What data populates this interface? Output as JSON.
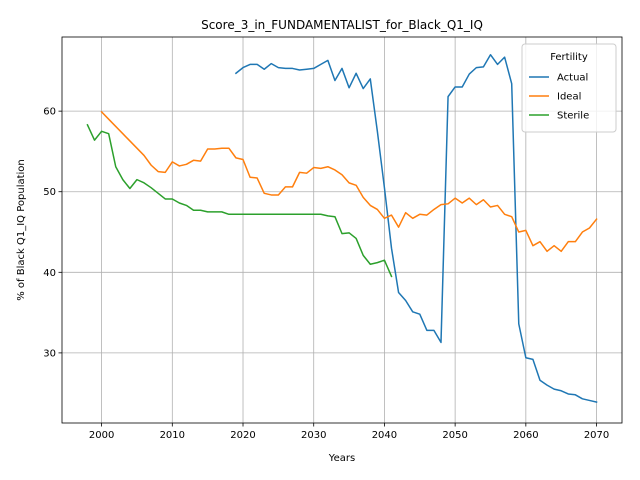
{
  "chart_data": {
    "type": "line",
    "title": "Score_3_in_FUNDAMENTALIST_for_Black_Q1_IQ",
    "xlabel": "Years",
    "ylabel": "% of Black Q1_IQ Population",
    "xlim": [
      1994.4,
      2073.6
    ],
    "ylim": [
      21.3,
      69.2
    ],
    "grid": true,
    "legend": {
      "title": "Fertility",
      "placement": "top-right"
    },
    "x_ticks": [
      2000,
      2010,
      2020,
      2030,
      2040,
      2050,
      2060,
      2070
    ],
    "x_tick_labels": [
      "2000",
      "2010",
      "2020",
      "2030",
      "2040",
      "2050",
      "2060",
      "2070"
    ],
    "y_ticks": [
      30,
      40,
      50,
      60
    ],
    "y_tick_labels": [
      "30",
      "40",
      "50",
      "60"
    ],
    "series": [
      {
        "name": "Actual",
        "color": "#1f77b4",
        "x": [
          2019,
          2020,
          2021,
          2022,
          2023,
          2024,
          2025,
          2026,
          2027,
          2028,
          2029,
          2030,
          2031,
          2032,
          2033,
          2034,
          2035,
          2036,
          2037,
          2038,
          2039,
          2040,
          2041,
          2042,
          2043,
          2044,
          2045,
          2046,
          2047,
          2048,
          2049,
          2050,
          2051,
          2052,
          2053,
          2054,
          2055,
          2056,
          2057,
          2058,
          2059,
          2060,
          2061,
          2062,
          2063,
          2064,
          2065,
          2066,
          2067,
          2068,
          2069,
          2070
        ],
        "y": [
          64.7,
          65.4,
          65.8,
          65.8,
          65.2,
          65.9,
          65.4,
          65.3,
          65.3,
          65.1,
          65.2,
          65.3,
          65.8,
          66.3,
          63.8,
          65.3,
          62.9,
          64.7,
          62.8,
          64.0,
          57.5,
          50.5,
          43.0,
          37.5,
          36.5,
          35.1,
          34.8,
          32.8,
          32.8,
          31.3,
          61.8,
          63.0,
          63.0,
          64.6,
          65.4,
          65.5,
          67.0,
          65.8,
          66.7,
          63.4,
          33.6,
          29.4,
          29.2,
          26.6,
          26.0,
          25.5,
          25.3,
          24.9,
          24.8,
          24.3,
          24.1,
          23.9
        ]
      },
      {
        "name": "Ideal",
        "color": "#ff7f0e",
        "x": [
          2000,
          2001,
          2002,
          2003,
          2004,
          2005,
          2006,
          2007,
          2008,
          2009,
          2010,
          2011,
          2012,
          2013,
          2014,
          2015,
          2016,
          2017,
          2018,
          2019,
          2020,
          2021,
          2022,
          2023,
          2024,
          2025,
          2026,
          2027,
          2028,
          2029,
          2030,
          2031,
          2032,
          2033,
          2034,
          2035,
          2036,
          2037,
          2038,
          2039,
          2040,
          2041,
          2042,
          2043,
          2044,
          2045,
          2046,
          2047,
          2048,
          2049,
          2050,
          2051,
          2052,
          2053,
          2054,
          2055,
          2056,
          2057,
          2058,
          2059,
          2060,
          2061,
          2062,
          2063,
          2064,
          2065,
          2066,
          2067,
          2068,
          2069,
          2070
        ],
        "y": [
          59.9,
          59.0,
          58.1,
          57.2,
          56.3,
          55.4,
          54.5,
          53.3,
          52.5,
          52.4,
          53.7,
          53.2,
          53.4,
          53.9,
          53.8,
          55.3,
          55.3,
          55.4,
          55.4,
          54.2,
          54.0,
          51.8,
          51.7,
          49.8,
          49.6,
          49.6,
          50.6,
          50.6,
          52.4,
          52.3,
          53.0,
          52.9,
          53.1,
          52.7,
          52.1,
          51.1,
          50.8,
          49.3,
          48.3,
          47.8,
          46.7,
          47.1,
          45.6,
          47.4,
          46.7,
          47.2,
          47.1,
          47.8,
          48.4,
          48.5,
          49.2,
          48.6,
          49.2,
          48.4,
          49.0,
          48.1,
          48.3,
          47.2,
          46.9,
          45.0,
          45.2,
          43.3,
          43.8,
          42.6,
          43.3,
          42.6,
          43.8,
          43.8,
          45.0,
          45.5,
          46.6
        ]
      },
      {
        "name": "Sterile",
        "color": "#2ca02c",
        "x": [
          1998,
          1999,
          2000,
          2001,
          2002,
          2003,
          2004,
          2005,
          2006,
          2007,
          2008,
          2009,
          2010,
          2011,
          2012,
          2013,
          2014,
          2015,
          2016,
          2017,
          2018,
          2019,
          2020,
          2021,
          2022,
          2023,
          2024,
          2025,
          2026,
          2027,
          2028,
          2029,
          2030,
          2031,
          2032,
          2033,
          2034,
          2035,
          2036,
          2037,
          2038,
          2039,
          2040,
          2041
        ],
        "y": [
          58.3,
          56.4,
          57.5,
          57.2,
          53.1,
          51.5,
          50.4,
          51.5,
          51.1,
          50.5,
          49.8,
          49.1,
          49.1,
          48.6,
          48.3,
          47.7,
          47.7,
          47.5,
          47.5,
          47.5,
          47.2,
          47.2,
          47.2,
          47.2,
          47.2,
          47.2,
          47.2,
          47.2,
          47.2,
          47.2,
          47.2,
          47.2,
          47.2,
          47.2,
          47.0,
          46.9,
          44.8,
          44.9,
          44.2,
          42.1,
          41.0,
          41.2,
          41.5,
          39.5
        ]
      }
    ]
  }
}
